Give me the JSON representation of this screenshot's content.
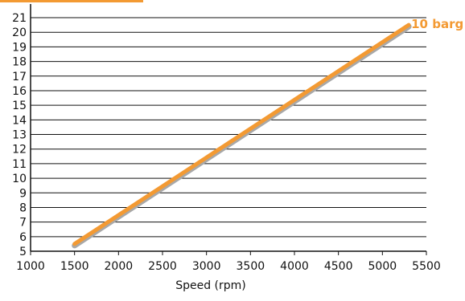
{
  "chart_data": {
    "type": "line",
    "title": "",
    "xlabel": "Speed (rpm)",
    "ylabel": "",
    "xlim": [
      1000,
      5500
    ],
    "ylim": [
      5,
      21
    ],
    "x_ticks": [
      1000,
      1500,
      2000,
      2500,
      3000,
      3500,
      4000,
      4500,
      5000,
      5500
    ],
    "y_ticks": [
      5,
      6,
      7,
      8,
      9,
      10,
      11,
      12,
      13,
      14,
      15,
      16,
      17,
      18,
      19,
      20,
      21
    ],
    "grid": "horizontal",
    "series": [
      {
        "name": "10 barg",
        "color": "#F39A33",
        "shadow_color": "#A8A8A8",
        "x": [
          1500,
          5300
        ],
        "y": [
          5.5,
          20.5
        ]
      }
    ]
  },
  "colors": {
    "accent_bar": "#F39A33",
    "grid": "#111111",
    "axis": "#111111",
    "text": "#111111"
  }
}
